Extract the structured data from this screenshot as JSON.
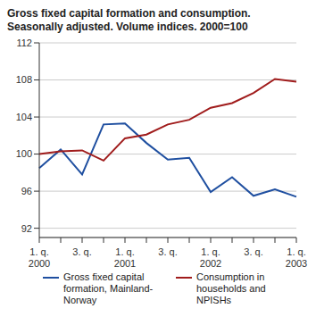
{
  "chart_data": {
    "type": "line",
    "title": "Gross fixed capital formation and consumption.",
    "subtitle": "Seasonally adjusted. Volume indices. 2000=100",
    "categories": [
      "1. q.\n2000",
      null,
      "3. q.",
      null,
      "1. q.\n2001",
      null,
      "3. q.",
      null,
      "1. q.\n2002",
      null,
      "3. q.",
      null,
      "1. q.\n2003"
    ],
    "series": [
      {
        "name": "Gross fixed capital formation, Mainland-Norway",
        "color": "#1f4fa0",
        "values": [
          98.5,
          100.5,
          97.8,
          103.2,
          103.3,
          101.2,
          99.4,
          99.6,
          95.9,
          97.5,
          95.5,
          96.2,
          95.4
        ]
      },
      {
        "name": "Consumption in households and NPISHs",
        "color": "#a01c1c",
        "values": [
          100,
          100.3,
          100.4,
          99.3,
          101.7,
          102.1,
          103.2,
          103.7,
          105.0,
          105.5,
          106.6,
          108.1,
          107.8
        ]
      }
    ],
    "ylim": [
      91,
      112
    ],
    "yticks": [
      92,
      96,
      100,
      104,
      108,
      112
    ],
    "grid": true,
    "legend": "bottom"
  }
}
